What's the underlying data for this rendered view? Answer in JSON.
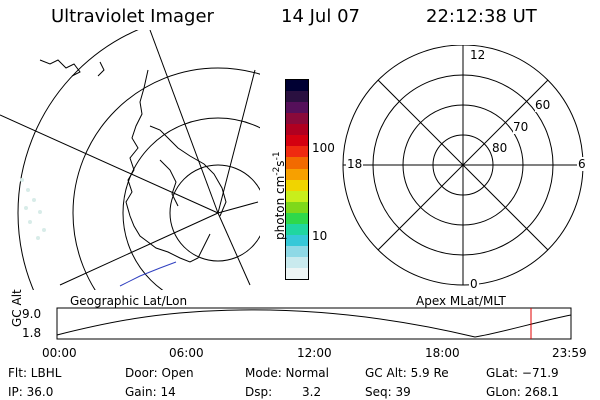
{
  "header": {
    "title": "Ultraviolet Imager",
    "date": "14 Jul 07",
    "time": "22:12:38 UT"
  },
  "colorbar": {
    "label": "photon cm-2s-1",
    "label_main": "photon cm",
    "label_exp1": "-2",
    "label_mid": "s",
    "label_exp2": "-1",
    "ticks": [
      "100",
      "10"
    ],
    "colors": [
      "#000033",
      "#2a1040",
      "#55105a",
      "#8a0a3a",
      "#b00020",
      "#d40010",
      "#ef2a10",
      "#f26a00",
      "#f7a000",
      "#f0d400",
      "#c8ee1c",
      "#7ed81a",
      "#2fd84a",
      "#20d6a0",
      "#36c8d8",
      "#8fd9e6",
      "#c9eaee",
      "#edf5f5"
    ]
  },
  "left_map": {
    "caption": "Geographic Lat/Lon"
  },
  "right_map": {
    "caption": "Apex MLat/MLT",
    "mlt_labels": {
      "top": "12",
      "left": "18",
      "right": "6",
      "bottom": "0"
    },
    "mlat_labels": [
      "60",
      "70",
      "80"
    ]
  },
  "altitude_plot": {
    "ylabel": "GC Alt",
    "yticks": [
      "9.0",
      "1.8"
    ],
    "xticks": [
      "00:00",
      "06:00",
      "12:00",
      "18:00",
      "23:59"
    ],
    "current_time_color": "#e00000"
  },
  "info": {
    "filter": "Flt: LBHL",
    "door": "Door: Open",
    "mode": "Mode: Normal",
    "gc_alt": "GC Alt: 5.9 Re",
    "glat": "GLat: −71.9",
    "ip": "IP: 36.0",
    "gain": "Gain: 14",
    "dsp_label": "Dsp:",
    "dsp_value": "3.2",
    "seq": "Seq: 39",
    "glon": "GLon: 268.1"
  }
}
